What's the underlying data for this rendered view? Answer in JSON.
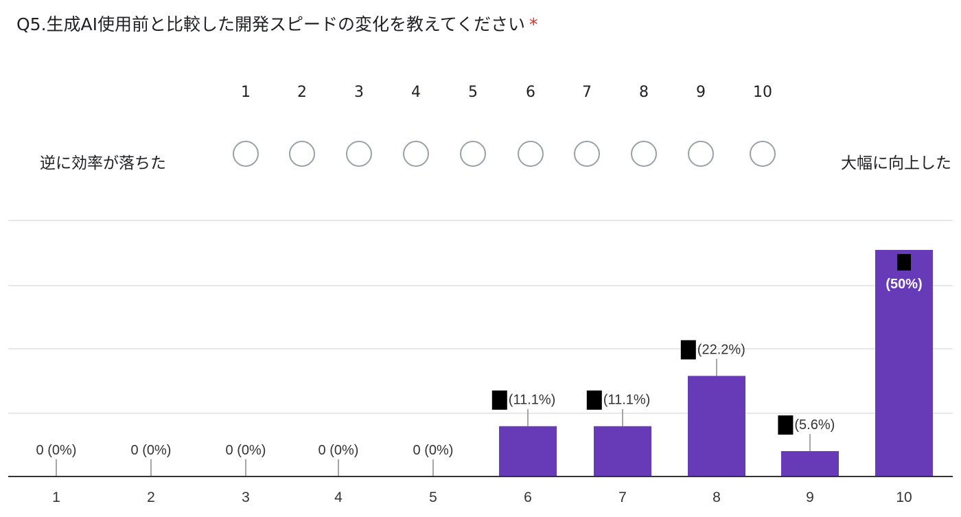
{
  "question": {
    "title": "Q5.生成AI使用前と比較した開発スピードの変化を教えてください",
    "required_mark": "*",
    "scale_numbers": [
      "1",
      "2",
      "3",
      "4",
      "5",
      "6",
      "7",
      "8",
      "9",
      "10"
    ],
    "low_label": "逆に効率が落ちた",
    "high_label": "大幅に向上した"
  },
  "colors": {
    "bar": "#673ab7",
    "required": "#d93025",
    "radio_border": "#9aa0a6",
    "grid": "#e8e8e8",
    "axis": "#333333"
  },
  "chart_data": {
    "type": "bar",
    "title": "",
    "xlabel": "",
    "ylabel": "",
    "categories": [
      "1",
      "2",
      "3",
      "4",
      "5",
      "6",
      "7",
      "8",
      "9",
      "10"
    ],
    "values": [
      0,
      0,
      0,
      0,
      0,
      11.1,
      11.1,
      22.2,
      5.6,
      50
    ],
    "data_labels": [
      "0 (0%)",
      "0 (0%)",
      "0 (0%)",
      "0 (0%)",
      "0 (0%)",
      "(11.1%)",
      "(11.1%)",
      "(22.2%)",
      "(5.6%)",
      "(50%)"
    ],
    "redacted_counts": [
      false,
      false,
      false,
      false,
      false,
      true,
      true,
      true,
      true,
      true
    ],
    "ylim": [
      0,
      55
    ],
    "grid": true,
    "legend": "none"
  }
}
